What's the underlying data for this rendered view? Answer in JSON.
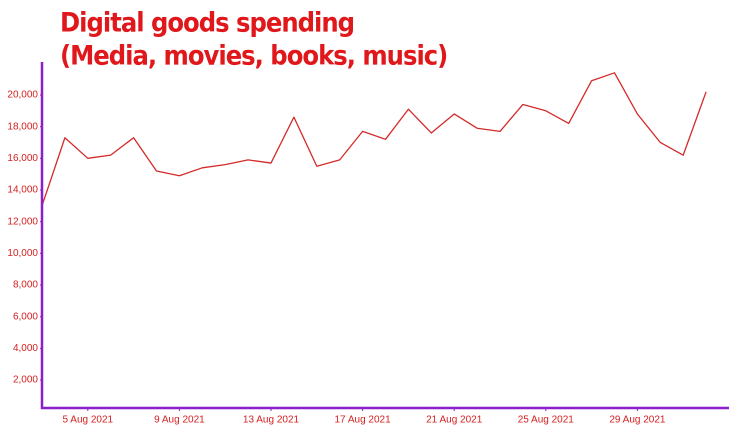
{
  "chart_data": {
    "type": "line",
    "title": [
      "Digital goods spending",
      "(Media, movies, books, music)"
    ],
    "x": [
      "2021-08-03",
      "2021-08-04",
      "2021-08-05",
      "2021-08-06",
      "2021-08-07",
      "2021-08-08",
      "2021-08-09",
      "2021-08-10",
      "2021-08-11",
      "2021-08-12",
      "2021-08-13",
      "2021-08-14",
      "2021-08-15",
      "2021-08-16",
      "2021-08-17",
      "2021-08-18",
      "2021-08-19",
      "2021-08-20",
      "2021-08-21",
      "2021-08-22",
      "2021-08-23",
      "2021-08-24",
      "2021-08-25",
      "2021-08-26",
      "2021-08-27",
      "2021-08-28",
      "2021-08-29",
      "2021-08-30",
      "2021-08-31",
      "2021-09-01"
    ],
    "series": [
      {
        "color": "#d42a2a",
        "values": [
          13000,
          17300,
          16000,
          16200,
          17300,
          15200,
          14900,
          15400,
          15600,
          15900,
          15700,
          18600,
          15500,
          15900,
          17700,
          17200,
          19100,
          17600,
          18800,
          17900,
          17700,
          19400,
          19000,
          18200,
          20900,
          21400,
          18800,
          17000,
          16200,
          20200
        ]
      }
    ],
    "xlim": [
      "2021-08-03",
      "2021-09-02"
    ],
    "xticks": [
      {
        "value": "2021-08-05",
        "label": "5 Aug 2021"
      },
      {
        "value": "2021-08-09",
        "label": "9 Aug 2021"
      },
      {
        "value": "2021-08-13",
        "label": "13 Aug 2021"
      },
      {
        "value": "2021-08-17",
        "label": "17 Aug 2021"
      },
      {
        "value": "2021-08-21",
        "label": "21 Aug 2021"
      },
      {
        "value": "2021-08-25",
        "label": "25 Aug 2021"
      },
      {
        "value": "2021-08-29",
        "label": "29 Aug 2021"
      }
    ],
    "ylim": [
      0,
      22000
    ],
    "yticks": [
      {
        "value": 2000,
        "label": "2,000"
      },
      {
        "value": 4000,
        "label": "4,000"
      },
      {
        "value": 6000,
        "label": "6,000"
      },
      {
        "value": 8000,
        "label": "8,000"
      },
      {
        "value": 10000,
        "label": "10,000"
      },
      {
        "value": 12000,
        "label": "12,000"
      },
      {
        "value": 14000,
        "label": "14,000"
      },
      {
        "value": 16000,
        "label": "16,000"
      },
      {
        "value": 18000,
        "label": "18,000"
      },
      {
        "value": 20000,
        "label": "20,000"
      }
    ],
    "axis_color": "#8b1fc9"
  }
}
